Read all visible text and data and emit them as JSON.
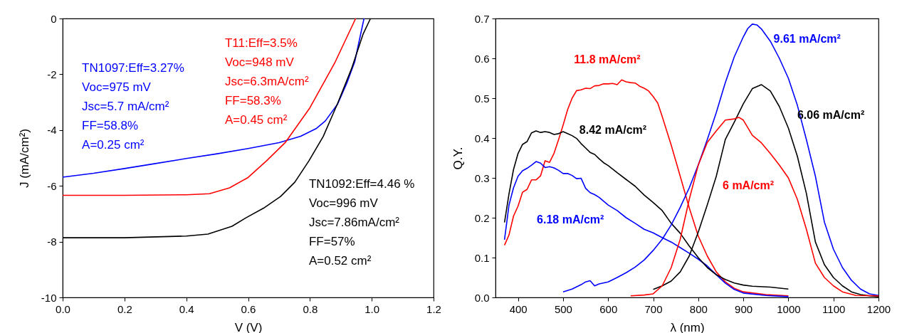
{
  "chart_data": [
    {
      "type": "line",
      "xlabel": "V (V)",
      "ylabel": "J (mA/cm²)",
      "xlim": [
        0,
        1.2
      ],
      "ylim": [
        -10,
        0
      ],
      "xticks": [
        {
          "value": 0,
          "label": "0.0"
        },
        0.2,
        0.4,
        0.6,
        0.8,
        {
          "value": 1,
          "label": "1.0"
        },
        1.2
      ],
      "yticks": [
        -10,
        -8,
        -6,
        -4,
        -2,
        0
      ],
      "grid": false,
      "series": [
        {
          "color": "#0000ff",
          "x": [
            0,
            0.1,
            0.2,
            0.3,
            0.4,
            0.5,
            0.6,
            0.7,
            0.77,
            0.82,
            0.85,
            0.89,
            0.92,
            0.945,
            0.975
          ],
          "values": [
            -5.69,
            -5.55,
            -5.38,
            -5.2,
            -5.02,
            -4.85,
            -4.66,
            -4.45,
            -4.22,
            -3.95,
            -3.67,
            -3.06,
            -2.3,
            -1.55,
            0
          ]
        },
        {
          "color": "#ff0000",
          "x": [
            0,
            0.2,
            0.4,
            0.475,
            0.54,
            0.6,
            0.66,
            0.72,
            0.8,
            0.88,
            0.948
          ],
          "values": [
            -6.34,
            -6.34,
            -6.32,
            -6.28,
            -6.07,
            -5.7,
            -5.1,
            -4.45,
            -3.2,
            -1.6,
            0
          ]
        },
        {
          "color": "#000000",
          "x": [
            0,
            0.2,
            0.4,
            0.47,
            0.548,
            0.594,
            0.65,
            0.705,
            0.751,
            0.797,
            0.843,
            0.889,
            0.935,
            0.972,
            0.996
          ],
          "values": [
            -7.86,
            -7.86,
            -7.8,
            -7.73,
            -7.45,
            -7.14,
            -6.8,
            -6.38,
            -5.87,
            -5.1,
            -4.23,
            -3.06,
            -1.79,
            -0.56,
            0
          ]
        }
      ],
      "annotations": [
        "TN1097:Eff=3.27%\nVoc=975 mV\nJsc=5.7 mA/cm²\nFF=58.8%\nA=0.25 cm²",
        "T11:Eff=3.5%\nVoc=948 mV\nJsc=6.3mA/cm²\nFF=58.3%\nA=0.45 cm²",
        "TN1092:Eff=4.46 %\nVoc=996 mV\nJsc=7.86mA/cm²\nFF=57%\nA=0.52 cm²"
      ]
    },
    {
      "type": "line",
      "xlabel": "λ (nm)",
      "ylabel": "Q.Y.",
      "xlim": [
        350,
        1200
      ],
      "ylim": [
        0,
        0.7
      ],
      "xticks": [
        400,
        500,
        600,
        700,
        800,
        900,
        1000,
        1100,
        1200
      ],
      "yticks": [
        {
          "value": 0,
          "label": "0.0"
        },
        0.1,
        0.2,
        0.3,
        0.4,
        0.5,
        0.6,
        0.7
      ],
      "grid": false,
      "series": [
        {
          "color": "#ff0000",
          "x": [
            370,
            380,
            390,
            400,
            410,
            420,
            430,
            440,
            450,
            460,
            470,
            480,
            490,
            500,
            510,
            520,
            530,
            540,
            550,
            560,
            570,
            580,
            590,
            600,
            610,
            620,
            630,
            640,
            650,
            660,
            670,
            680,
            690,
            700,
            710,
            720,
            740,
            760,
            780,
            800,
            820,
            840,
            860,
            880,
            900,
            950,
            1000
          ],
          "values": [
            0.131,
            0.157,
            0.204,
            0.229,
            0.264,
            0.271,
            0.295,
            0.295,
            0.305,
            0.343,
            0.339,
            0.362,
            0.396,
            0.432,
            0.471,
            0.5,
            0.519,
            0.521,
            0.525,
            0.524,
            0.531,
            0.532,
            0.536,
            0.536,
            0.537,
            0.534,
            0.546,
            0.541,
            0.539,
            0.538,
            0.53,
            0.525,
            0.518,
            0.504,
            0.488,
            0.454,
            0.382,
            0.304,
            0.225,
            0.154,
            0.104,
            0.064,
            0.039,
            0.023,
            0.014,
            0.007,
            0.004
          ]
        },
        {
          "color": "#0000ff",
          "x": [
            370,
            380,
            390,
            400,
            410,
            420,
            430,
            440,
            450,
            460,
            470,
            480,
            490,
            500,
            510,
            520,
            530,
            540,
            550,
            560,
            570,
            580,
            600,
            620,
            640,
            660,
            680,
            700,
            720,
            740,
            760,
            780,
            800,
            820,
            840,
            860,
            880,
            900,
            950,
            1000
          ],
          "values": [
            0.145,
            0.232,
            0.275,
            0.304,
            0.318,
            0.324,
            0.332,
            0.341,
            0.337,
            0.326,
            0.328,
            0.325,
            0.319,
            0.311,
            0.311,
            0.306,
            0.298,
            0.299,
            0.274,
            0.263,
            0.258,
            0.251,
            0.232,
            0.218,
            0.2,
            0.186,
            0.171,
            0.162,
            0.15,
            0.139,
            0.125,
            0.111,
            0.096,
            0.079,
            0.057,
            0.036,
            0.02,
            0.011,
            0.005,
            0.002
          ]
        },
        {
          "color": "#000000",
          "x": [
            370,
            380,
            390,
            400,
            410,
            420,
            430,
            440,
            450,
            460,
            470,
            480,
            490,
            500,
            510,
            520,
            530,
            540,
            550,
            560,
            570,
            580,
            590,
            600,
            620,
            640,
            660,
            680,
            700,
            720,
            740,
            760,
            780,
            800,
            820,
            840,
            860,
            880,
            900,
            920,
            960,
            1000
          ],
          "values": [
            0.188,
            0.26,
            0.321,
            0.361,
            0.384,
            0.391,
            0.413,
            0.418,
            0.414,
            0.416,
            0.414,
            0.409,
            0.411,
            0.416,
            0.411,
            0.406,
            0.399,
            0.386,
            0.375,
            0.364,
            0.359,
            0.348,
            0.338,
            0.331,
            0.313,
            0.296,
            0.279,
            0.257,
            0.238,
            0.218,
            0.186,
            0.161,
            0.129,
            0.1,
            0.075,
            0.057,
            0.045,
            0.036,
            0.031,
            0.028,
            0.026,
            0.021
          ]
        },
        {
          "color": "#0000ff",
          "x": [
            500,
            520,
            540,
            550,
            560,
            570,
            580,
            600,
            620,
            640,
            660,
            680,
            700,
            720,
            740,
            760,
            780,
            800,
            820,
            840,
            860,
            880,
            900,
            910,
            920,
            930,
            940,
            960,
            980,
            1000,
            1020,
            1040,
            1060,
            1080,
            1100,
            1120,
            1140,
            1160,
            1180,
            1200
          ],
          "values": [
            0.014,
            0.021,
            0.032,
            0.039,
            0.042,
            0.029,
            0.034,
            0.039,
            0.05,
            0.062,
            0.076,
            0.094,
            0.118,
            0.146,
            0.182,
            0.226,
            0.275,
            0.332,
            0.396,
            0.464,
            0.539,
            0.604,
            0.654,
            0.675,
            0.686,
            0.684,
            0.674,
            0.643,
            0.6,
            0.55,
            0.482,
            0.396,
            0.304,
            0.189,
            0.121,
            0.075,
            0.043,
            0.021,
            0.009,
            0.005
          ]
        },
        {
          "color": "#000000",
          "x": [
            700,
            720,
            740,
            760,
            780,
            800,
            820,
            840,
            860,
            880,
            900,
            920,
            940,
            960,
            980,
            1000,
            1020,
            1040,
            1060,
            1080,
            1100,
            1120,
            1140,
            1160,
            1180,
            1200
          ],
          "values": [
            0.02,
            0.029,
            0.041,
            0.064,
            0.104,
            0.164,
            0.232,
            0.304,
            0.396,
            0.44,
            0.486,
            0.524,
            0.534,
            0.518,
            0.479,
            0.425,
            0.354,
            0.261,
            0.139,
            0.082,
            0.05,
            0.029,
            0.014,
            0.007,
            0.004,
            0.002
          ]
        },
        {
          "color": "#ff0000",
          "x": [
            650,
            680,
            700,
            720,
            740,
            760,
            780,
            800,
            820,
            840,
            860,
            880,
            890,
            900,
            920,
            940,
            960,
            980,
            1000,
            1020,
            1040,
            1060,
            1080,
            1100,
            1120,
            1150,
            1200
          ],
          "values": [
            0.004,
            0.006,
            0.009,
            0.029,
            0.075,
            0.146,
            0.246,
            0.332,
            0.389,
            0.418,
            0.445,
            0.448,
            0.452,
            0.445,
            0.407,
            0.388,
            0.361,
            0.332,
            0.3,
            0.246,
            0.171,
            0.086,
            0.05,
            0.029,
            0.014,
            0.005,
            0.004
          ]
        }
      ],
      "annotations": [
        "11.8 mA/cm²",
        "6.18 mA/cm²",
        "8.42 mA/cm²",
        "9.61 mA/cm²",
        "6.06 mA/cm²",
        "6 mA/cm²"
      ]
    }
  ]
}
